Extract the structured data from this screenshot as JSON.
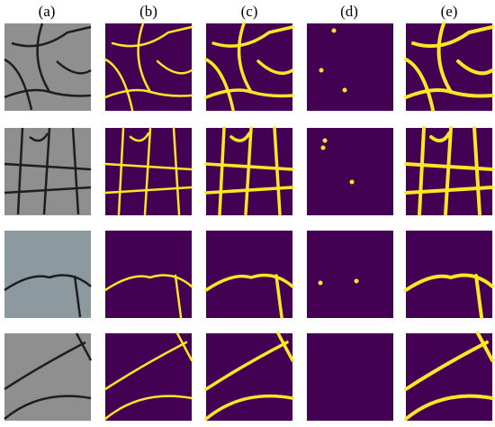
{
  "columns": [
    "(a)",
    "(b)",
    "(c)",
    "(d)",
    "(e)"
  ]
}
